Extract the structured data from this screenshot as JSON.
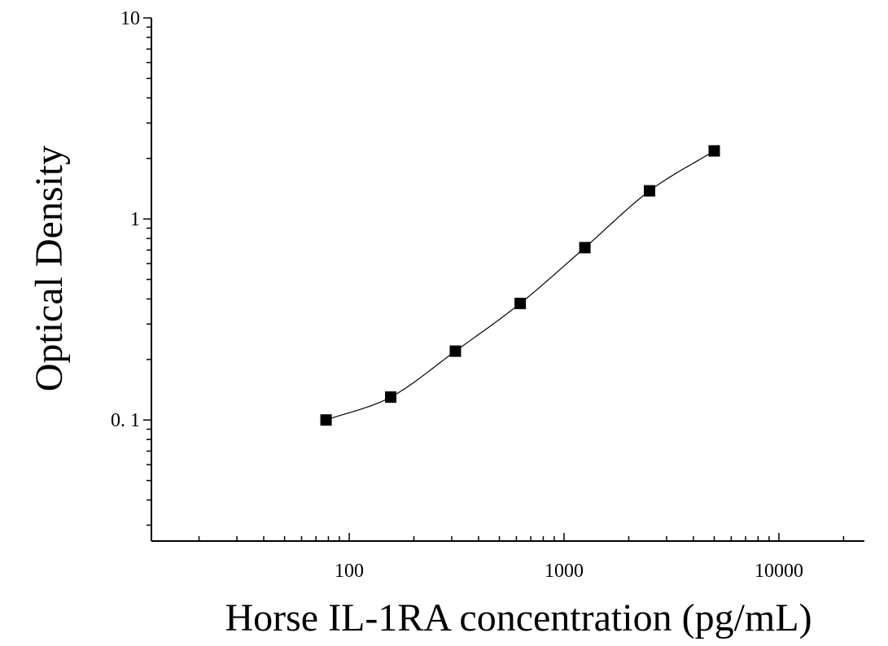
{
  "chart_data": {
    "type": "scatter",
    "title": "",
    "xlabel": "Horse IL-1RA concentration (pg/mL)",
    "ylabel": "Optical Density",
    "x_scale": "log",
    "y_scale": "log",
    "xlim": [
      12,
      25000
    ],
    "ylim": [
      0.025,
      10
    ],
    "x_ticks": [
      100,
      1000,
      10000
    ],
    "x_tick_labels": [
      "100",
      "1000",
      "10000"
    ],
    "y_ticks": [
      0.1,
      1,
      10
    ],
    "y_tick_labels": [
      "0. 1",
      "1",
      "10"
    ],
    "grid": false,
    "marker": "square",
    "color": "#000000",
    "points": {
      "x": [
        78,
        156,
        312,
        625,
        1250,
        2500,
        5000
      ],
      "y": [
        0.1,
        0.13,
        0.22,
        0.38,
        0.72,
        1.38,
        2.18
      ]
    },
    "fit_curve": {
      "type": "4-parameter logistic",
      "x_range": [
        78,
        5000
      ]
    }
  }
}
